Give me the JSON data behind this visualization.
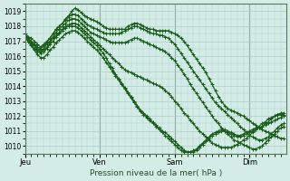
{
  "xlabel": "Pression niveau de la mer( hPa )",
  "ylim": [
    1009.5,
    1019.5
  ],
  "yticks": [
    1010,
    1011,
    1012,
    1013,
    1014,
    1015,
    1016,
    1017,
    1018,
    1019
  ],
  "xtick_labels": [
    "Jeu",
    "Ven",
    "Sam",
    "Dim"
  ],
  "xtick_positions": [
    0,
    96,
    192,
    288
  ],
  "total_points": 336,
  "bg_color": "#d4ece6",
  "grid_color": "#aacccc",
  "line_color": "#1a5c1a",
  "marker": "+",
  "marker_size": 2.5,
  "line_width": 0.9,
  "series": [
    {
      "name": "s1_peak",
      "x": [
        0,
        4,
        8,
        12,
        16,
        20,
        24,
        28,
        32,
        36,
        40,
        44,
        48,
        52,
        56,
        60,
        64,
        68,
        72,
        76,
        80,
        84,
        88,
        92,
        96,
        100,
        104,
        108,
        112,
        116,
        120,
        124,
        128,
        132,
        136,
        140,
        144,
        148,
        152,
        156,
        160,
        164,
        168,
        172,
        176,
        180,
        184,
        188,
        192,
        196,
        200,
        204,
        208,
        212,
        216,
        220,
        224,
        228,
        232,
        236,
        240,
        244,
        248,
        252,
        256,
        260,
        264,
        268,
        272,
        276,
        280,
        284,
        288,
        292,
        296,
        300,
        304,
        308,
        312,
        316,
        320,
        324,
        328,
        332
      ],
      "y": [
        1017.5,
        1017.3,
        1017.2,
        1017.0,
        1016.8,
        1016.6,
        1016.8,
        1017.0,
        1017.2,
        1017.5,
        1017.8,
        1018.0,
        1018.2,
        1018.5,
        1018.7,
        1019.0,
        1019.2,
        1019.1,
        1018.9,
        1018.7,
        1018.6,
        1018.5,
        1018.4,
        1018.3,
        1018.2,
        1018.0,
        1017.9,
        1017.8,
        1017.8,
        1017.8,
        1017.8,
        1017.8,
        1017.8,
        1018.0,
        1018.1,
        1018.2,
        1018.2,
        1018.1,
        1018.0,
        1017.9,
        1017.8,
        1017.8,
        1017.7,
        1017.7,
        1017.7,
        1017.7,
        1017.7,
        1017.6,
        1017.5,
        1017.4,
        1017.2,
        1017.0,
        1016.7,
        1016.4,
        1016.1,
        1015.8,
        1015.5,
        1015.2,
        1014.9,
        1014.5,
        1014.1,
        1013.7,
        1013.3,
        1013.0,
        1012.7,
        1012.5,
        1012.4,
        1012.3,
        1012.2,
        1012.1,
        1012.0,
        1011.8,
        1011.7,
        1011.5,
        1011.4,
        1011.2,
        1011.1,
        1011.0,
        1010.9,
        1010.8,
        1010.7,
        1010.6,
        1010.5,
        1010.5
      ]
    },
    {
      "name": "s2_upper",
      "x": [
        0,
        4,
        8,
        12,
        16,
        20,
        24,
        28,
        32,
        36,
        40,
        44,
        48,
        52,
        56,
        60,
        64,
        68,
        72,
        76,
        80,
        84,
        88,
        92,
        96,
        100,
        104,
        108,
        112,
        116,
        120,
        124,
        128,
        132,
        136,
        140,
        144,
        148,
        152,
        156,
        160,
        164,
        168,
        172,
        176,
        180,
        184,
        188,
        192,
        196,
        200,
        204,
        208,
        212,
        216,
        220,
        224,
        228,
        232,
        236,
        240,
        244,
        248,
        252,
        256,
        260,
        264,
        268,
        272,
        276,
        280,
        284,
        288,
        292,
        296,
        300,
        304,
        308,
        312,
        316,
        320,
        324,
        328,
        332
      ],
      "y": [
        1017.3,
        1017.1,
        1017.0,
        1016.8,
        1016.6,
        1016.5,
        1016.7,
        1016.9,
        1017.2,
        1017.5,
        1017.8,
        1018.0,
        1018.2,
        1018.4,
        1018.6,
        1018.8,
        1018.8,
        1018.7,
        1018.5,
        1018.3,
        1018.1,
        1018.0,
        1017.9,
        1017.8,
        1017.7,
        1017.6,
        1017.5,
        1017.5,
        1017.5,
        1017.5,
        1017.5,
        1017.6,
        1017.7,
        1017.8,
        1017.9,
        1018.0,
        1018.0,
        1017.9,
        1017.8,
        1017.7,
        1017.6,
        1017.5,
        1017.5,
        1017.4,
        1017.4,
        1017.3,
        1017.2,
        1017.0,
        1016.8,
        1016.5,
        1016.2,
        1015.9,
        1015.6,
        1015.3,
        1015.0,
        1014.7,
        1014.4,
        1014.1,
        1013.8,
        1013.5,
        1013.2,
        1012.9,
        1012.7,
        1012.5,
        1012.3,
        1012.1,
        1011.9,
        1011.7,
        1011.5,
        1011.3,
        1011.1,
        1010.9,
        1010.7,
        1010.6,
        1010.5,
        1010.4,
        1010.4,
        1010.5,
        1010.6,
        1010.8,
        1011.0,
        1011.2,
        1011.4,
        1011.5
      ]
    },
    {
      "name": "s3_mid",
      "x": [
        0,
        4,
        8,
        12,
        16,
        20,
        24,
        28,
        32,
        36,
        40,
        44,
        48,
        52,
        56,
        60,
        64,
        68,
        72,
        76,
        80,
        84,
        88,
        92,
        96,
        100,
        104,
        108,
        112,
        116,
        120,
        124,
        128,
        132,
        136,
        140,
        144,
        148,
        152,
        156,
        160,
        164,
        168,
        172,
        176,
        180,
        184,
        188,
        192,
        196,
        200,
        204,
        208,
        212,
        216,
        220,
        224,
        228,
        232,
        236,
        240,
        244,
        248,
        252,
        256,
        260,
        264,
        268,
        272,
        276,
        280,
        284,
        288,
        292,
        296,
        300,
        304,
        308,
        312,
        316,
        320,
        324,
        328,
        332
      ],
      "y": [
        1017.4,
        1017.2,
        1017.0,
        1016.7,
        1016.5,
        1016.4,
        1016.5,
        1016.8,
        1017.0,
        1017.3,
        1017.6,
        1017.8,
        1018.0,
        1018.2,
        1018.4,
        1018.5,
        1018.5,
        1018.4,
        1018.2,
        1018.0,
        1017.8,
        1017.6,
        1017.5,
        1017.4,
        1017.3,
        1017.2,
        1017.1,
        1017.0,
        1016.9,
        1016.9,
        1016.9,
        1016.9,
        1016.9,
        1017.0,
        1017.1,
        1017.2,
        1017.2,
        1017.1,
        1017.0,
        1016.9,
        1016.8,
        1016.7,
        1016.6,
        1016.5,
        1016.4,
        1016.3,
        1016.1,
        1015.9,
        1015.7,
        1015.4,
        1015.1,
        1014.8,
        1014.5,
        1014.1,
        1013.8,
        1013.5,
        1013.2,
        1012.9,
        1012.6,
        1012.3,
        1012.0,
        1011.7,
        1011.5,
        1011.2,
        1011.0,
        1010.8,
        1010.6,
        1010.4,
        1010.3,
        1010.2,
        1010.1,
        1010.0,
        1009.9,
        1009.8,
        1009.8,
        1009.9,
        1010.0,
        1010.2,
        1010.4,
        1010.6,
        1010.8,
        1011.0,
        1011.2,
        1011.3
      ]
    },
    {
      "name": "s4_lower",
      "x": [
        0,
        4,
        8,
        12,
        16,
        20,
        24,
        28,
        32,
        36,
        40,
        44,
        48,
        52,
        56,
        60,
        64,
        68,
        72,
        76,
        80,
        84,
        88,
        92,
        96,
        100,
        104,
        108,
        112,
        116,
        120,
        124,
        128,
        132,
        136,
        140,
        144,
        148,
        152,
        156,
        160,
        164,
        168,
        172,
        176,
        180,
        184,
        188,
        192,
        196,
        200,
        204,
        208,
        212,
        216,
        220,
        224,
        228,
        232,
        236,
        240,
        244,
        248,
        252,
        256,
        260,
        264,
        268,
        272,
        276,
        280,
        284,
        288,
        292,
        296,
        300,
        304,
        308,
        312,
        316,
        320,
        324,
        328,
        332
      ],
      "y": [
        1017.4,
        1017.2,
        1016.9,
        1016.7,
        1016.4,
        1016.3,
        1016.4,
        1016.6,
        1016.9,
        1017.2,
        1017.4,
        1017.6,
        1017.8,
        1018.0,
        1018.1,
        1018.2,
        1018.2,
        1018.1,
        1017.9,
        1017.7,
        1017.5,
        1017.3,
        1017.1,
        1016.9,
        1016.7,
        1016.5,
        1016.3,
        1016.1,
        1015.9,
        1015.7,
        1015.5,
        1015.3,
        1015.1,
        1015.0,
        1014.9,
        1014.8,
        1014.7,
        1014.6,
        1014.5,
        1014.4,
        1014.3,
        1014.2,
        1014.1,
        1014.0,
        1013.9,
        1013.7,
        1013.5,
        1013.3,
        1013.0,
        1012.8,
        1012.5,
        1012.2,
        1012.0,
        1011.7,
        1011.5,
        1011.2,
        1011.0,
        1010.8,
        1010.6,
        1010.4,
        1010.2,
        1010.1,
        1010.0,
        1009.9,
        1009.9,
        1009.9,
        1009.9,
        1010.0,
        1010.1,
        1010.2,
        1010.4,
        1010.5,
        1010.7,
        1010.9,
        1011.1,
        1011.2,
        1011.3,
        1011.4,
        1011.5,
        1011.6,
        1011.7,
        1011.8,
        1011.9,
        1012.0
      ]
    },
    {
      "name": "s5_lowest",
      "x": [
        0,
        4,
        8,
        12,
        16,
        20,
        24,
        28,
        32,
        36,
        40,
        44,
        48,
        52,
        56,
        60,
        64,
        68,
        72,
        76,
        80,
        84,
        88,
        92,
        96,
        100,
        104,
        108,
        112,
        116,
        120,
        124,
        128,
        132,
        136,
        140,
        144,
        148,
        152,
        156,
        160,
        164,
        168,
        172,
        176,
        180,
        184,
        188,
        192,
        196,
        200,
        204,
        208,
        212,
        216,
        220,
        224,
        228,
        232,
        236,
        240,
        244,
        248,
        252,
        256,
        260,
        264,
        268,
        272,
        276,
        280,
        284,
        288,
        292,
        296,
        300,
        304,
        308,
        312,
        316,
        320,
        324,
        328,
        332
      ],
      "y": [
        1017.3,
        1017.0,
        1016.7,
        1016.4,
        1016.1,
        1015.9,
        1015.9,
        1016.1,
        1016.4,
        1016.6,
        1016.9,
        1017.1,
        1017.3,
        1017.5,
        1017.6,
        1017.7,
        1017.7,
        1017.6,
        1017.4,
        1017.2,
        1017.0,
        1016.8,
        1016.6,
        1016.4,
        1016.2,
        1015.9,
        1015.6,
        1015.3,
        1015.0,
        1014.7,
        1014.4,
        1014.1,
        1013.8,
        1013.5,
        1013.2,
        1012.9,
        1012.6,
        1012.3,
        1012.1,
        1011.9,
        1011.7,
        1011.5,
        1011.3,
        1011.1,
        1010.9,
        1010.7,
        1010.5,
        1010.3,
        1010.1,
        1009.9,
        1009.7,
        1009.6,
        1009.6,
        1009.6,
        1009.7,
        1009.8,
        1010.0,
        1010.2,
        1010.4,
        1010.6,
        1010.8,
        1010.9,
        1011.0,
        1011.1,
        1011.1,
        1011.0,
        1010.9,
        1010.8,
        1010.7,
        1010.7,
        1010.8,
        1010.9,
        1011.0,
        1011.1,
        1011.2,
        1011.3,
        1011.5,
        1011.6,
        1011.8,
        1011.9,
        1012.0,
        1012.1,
        1012.1,
        1012.1
      ]
    },
    {
      "name": "s6_dip",
      "x": [
        0,
        4,
        8,
        12,
        16,
        20,
        24,
        28,
        32,
        36,
        40,
        44,
        48,
        52,
        56,
        60,
        64,
        68,
        72,
        76,
        80,
        84,
        88,
        92,
        96,
        100,
        104,
        108,
        112,
        116,
        120,
        124,
        128,
        132,
        136,
        140,
        144,
        148,
        152,
        156,
        160,
        164,
        168,
        172,
        176,
        180,
        184,
        188,
        192,
        196,
        200,
        204,
        208,
        212,
        216,
        220,
        224,
        228,
        232,
        236,
        240,
        244,
        248,
        252,
        256,
        260,
        264,
        268,
        272,
        276,
        280,
        284,
        288,
        292,
        296,
        300,
        304,
        308,
        312,
        316,
        320,
        324,
        328,
        332
      ],
      "y": [
        1017.4,
        1017.1,
        1016.8,
        1016.5,
        1016.3,
        1016.2,
        1016.3,
        1016.5,
        1016.8,
        1017.0,
        1017.3,
        1017.5,
        1017.7,
        1017.9,
        1018.0,
        1018.0,
        1018.0,
        1017.9,
        1017.7,
        1017.5,
        1017.3,
        1017.1,
        1016.9,
        1016.7,
        1016.5,
        1016.2,
        1015.9,
        1015.5,
        1015.2,
        1014.8,
        1014.5,
        1014.2,
        1013.9,
        1013.6,
        1013.3,
        1013.0,
        1012.7,
        1012.4,
        1012.2,
        1012.0,
        1011.8,
        1011.6,
        1011.4,
        1011.2,
        1011.0,
        1010.9,
        1010.7,
        1010.5,
        1010.3,
        1010.1,
        1009.9,
        1009.7,
        1009.6,
        1009.6,
        1009.6,
        1009.7,
        1009.9,
        1010.1,
        1010.3,
        1010.5,
        1010.7,
        1010.8,
        1010.9,
        1011.0,
        1011.0,
        1010.9,
        1010.8,
        1010.7,
        1010.6,
        1010.6,
        1010.7,
        1010.8,
        1010.9,
        1011.0,
        1011.1,
        1011.2,
        1011.3,
        1011.5,
        1011.6,
        1011.8,
        1012.0,
        1012.1,
        1012.2,
        1012.2
      ]
    }
  ]
}
